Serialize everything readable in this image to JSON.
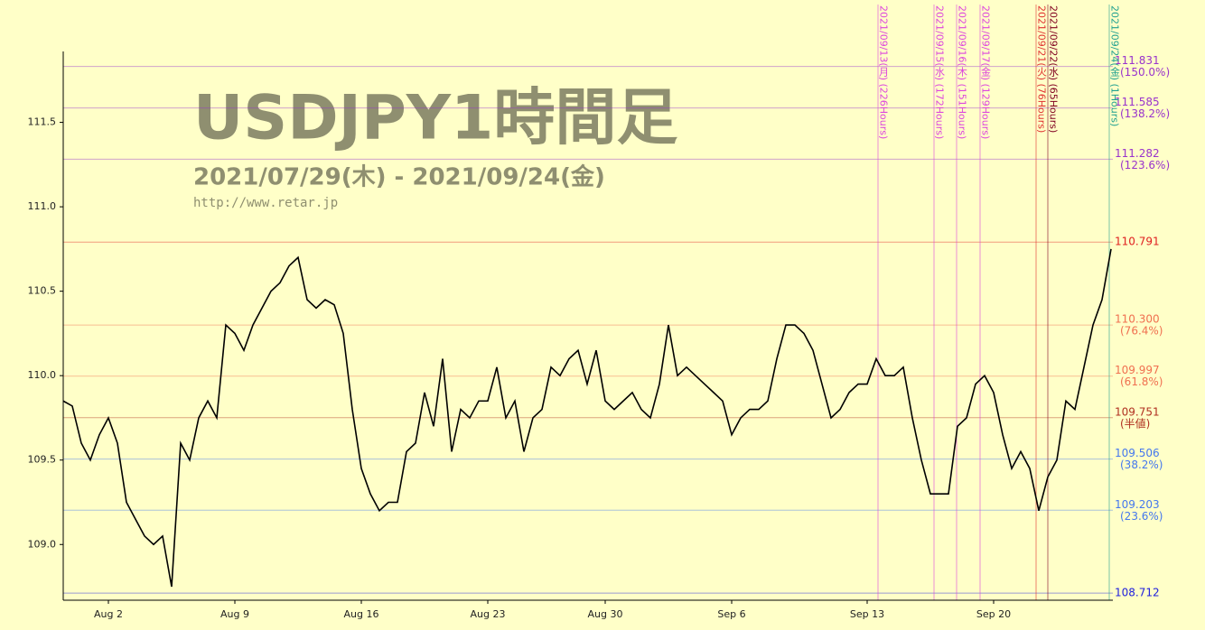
{
  "chart_data": {
    "type": "line",
    "title": "USDJPY1時間足",
    "subtitle": "2021/07/29(木) - 2021/09/24(金)",
    "source": "http://www.retar.jp",
    "color": "#000000",
    "categories": [
      null,
      null,
      null,
      null,
      null,
      "Aug 2",
      null,
      null,
      null,
      null,
      null,
      null,
      null,
      null,
      null,
      null,
      null,
      null,
      null,
      "Aug 9",
      null,
      null,
      null,
      null,
      null,
      null,
      null,
      null,
      null,
      null,
      null,
      null,
      null,
      "Aug 16",
      null,
      null,
      null,
      null,
      null,
      null,
      null,
      null,
      null,
      null,
      null,
      null,
      null,
      "Aug 23",
      null,
      null,
      null,
      null,
      null,
      null,
      null,
      null,
      null,
      null,
      null,
      null,
      "Aug 30",
      null,
      null,
      null,
      null,
      null,
      null,
      null,
      null,
      null,
      null,
      null,
      null,
      null,
      "Sep 6",
      null,
      null,
      null,
      null,
      null,
      null,
      null,
      null,
      null,
      null,
      null,
      null,
      null,
      null,
      "Sep 13",
      null,
      null,
      null,
      null,
      null,
      null,
      null,
      null,
      null,
      null,
      null,
      null,
      null,
      "Sep 20",
      null,
      null,
      null,
      null,
      null,
      null,
      null,
      null,
      null,
      null,
      null,
      null,
      null
    ],
    "values": [
      109.85,
      109.82,
      109.6,
      109.5,
      109.65,
      109.75,
      109.6,
      109.25,
      109.15,
      109.05,
      109.0,
      109.05,
      108.75,
      109.6,
      109.5,
      109.75,
      109.85,
      109.75,
      110.3,
      110.25,
      110.15,
      110.3,
      110.4,
      110.5,
      110.55,
      110.65,
      110.7,
      110.45,
      110.4,
      110.45,
      110.42,
      110.25,
      109.8,
      109.45,
      109.3,
      109.2,
      109.25,
      109.25,
      109.55,
      109.6,
      109.9,
      109.7,
      110.1,
      109.55,
      109.8,
      109.75,
      109.85,
      109.85,
      110.05,
      109.75,
      109.85,
      109.55,
      109.75,
      109.8,
      110.05,
      110.0,
      110.1,
      110.15,
      109.95,
      110.15,
      109.85,
      109.8,
      109.85,
      109.9,
      109.8,
      109.75,
      109.95,
      110.3,
      110.0,
      110.05,
      110.0,
      109.95,
      109.9,
      109.85,
      109.65,
      109.75,
      109.8,
      109.8,
      109.85,
      110.1,
      110.3,
      110.3,
      110.25,
      110.15,
      109.95,
      109.75,
      109.8,
      109.9,
      109.95,
      109.95,
      110.1,
      110.0,
      110.0,
      110.05,
      109.75,
      109.5,
      109.3,
      109.3,
      109.3,
      109.7,
      109.75,
      109.95,
      110.0,
      109.9,
      109.65,
      109.45,
      109.55,
      109.45,
      109.2,
      109.4,
      109.5,
      109.85,
      109.8,
      110.05,
      110.3,
      110.45,
      110.75
    ],
    "ylim": [
      108.67,
      111.92
    ],
    "yticks": [
      {
        "value": 109,
        "label": "109.0"
      },
      109.5,
      {
        "value": 110,
        "label": "110.0"
      },
      110.5,
      {
        "value": 111,
        "label": "111.0"
      },
      111.5
    ],
    "levels": [
      {
        "value": 111.831,
        "label": "111.831",
        "note": "(150.0%)",
        "color": "#9933cc"
      },
      {
        "value": 111.585,
        "label": "111.585",
        "note": "(138.2%)",
        "color": "#9933cc"
      },
      {
        "value": 111.282,
        "label": "111.282",
        "note": "(123.6%)",
        "color": "#9933cc"
      },
      {
        "value": 110.791,
        "label": "110.791",
        "color": "#e02020"
      },
      {
        "value": 110.3,
        "label": "110.300",
        "note": "(76.4%)",
        "color": "#f07050"
      },
      {
        "value": 109.997,
        "label": "109.997",
        "note": "(61.8%)",
        "color": "#f07050"
      },
      {
        "value": 109.751,
        "label": "109.751",
        "note": "(半値)",
        "color": "#b03020"
      },
      {
        "value": 109.506,
        "label": "109.506",
        "note": "(38.2%)",
        "color": "#4477ee"
      },
      {
        "value": 109.203,
        "label": "109.203",
        "note": "(23.6%)",
        "color": "#4477ee"
      },
      {
        "value": 108.712,
        "label": "108.712",
        "color": "#2020dd"
      }
    ],
    "cycles": [
      {
        "label": "2021/09/13(月) (226Hours)",
        "color": "#dd44dd"
      },
      {
        "label": "2021/09/15(水) (172Hours)",
        "color": "#dd44dd"
      },
      {
        "label": "2021/09/16(木) (151Hours)",
        "color": "#dd44dd"
      },
      {
        "label": "2021/09/17(金) (129Hours)",
        "color": "#dd44dd"
      },
      {
        "label": "2021/09/21(火) (76Hours)",
        "color": "#e03030"
      },
      {
        "label": "2021/09/22(水) (65Hours)",
        "color": "#800020"
      },
      {
        "label": "2021/09/24(金) (1Hours)",
        "color": "#20a090"
      }
    ]
  }
}
